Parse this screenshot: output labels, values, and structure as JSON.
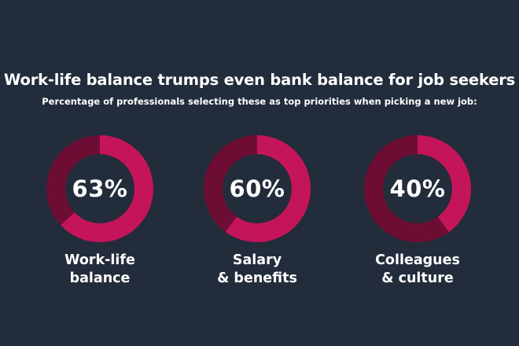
{
  "title": "Work-life balance trumps even bank balance for job seekers",
  "subtitle": "Percentage of professionals selecting these as top priorities when picking a new job:",
  "colors": {
    "background": "#232c3b",
    "filled": "#c4155a",
    "remaining": "#6e0d33"
  },
  "chart_data": [
    {
      "type": "pie",
      "value": 63,
      "value_label": "63%",
      "label_lines": [
        "Work-life",
        "balance"
      ]
    },
    {
      "type": "pie",
      "value": 60,
      "value_label": "60%",
      "label_lines": [
        "Salary",
        "& benefits"
      ]
    },
    {
      "type": "pie",
      "value": 40,
      "value_label": "40%",
      "label_lines": [
        "Colleagues",
        "& culture"
      ]
    }
  ]
}
